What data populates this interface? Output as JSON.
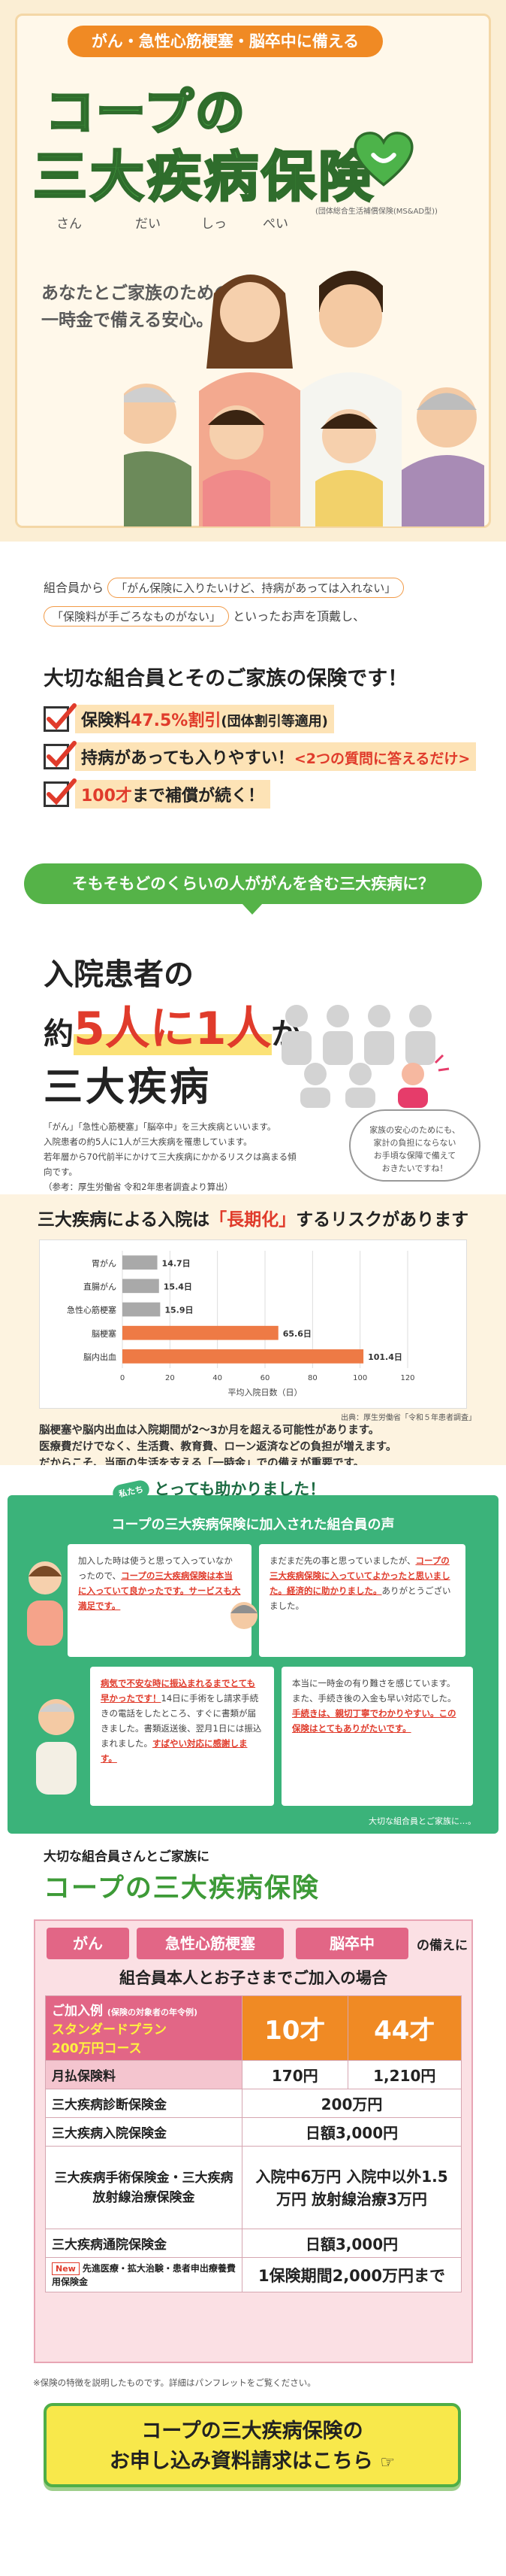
{
  "hero": {
    "top_pill": "がん・急性心筋梗塞・脳卒中に備える",
    "title_line1": "コープの",
    "title_line2": "三大疾病保険",
    "ruby": [
      "さん",
      "だい",
      "しっ",
      "ぺい"
    ],
    "note": "(団体総合生活補償保険(MS&AD型))",
    "lead_line1": "あなたとご家族のための、",
    "lead_line2": "一時金で備える安心。"
  },
  "benefits": {
    "line1_prefix": "組合員から",
    "bubble1": "「がん保険に入りたいけど、持病があっては入れない」",
    "bubble2": "「保険料が手ごろなものがない」",
    "line2_suffix": "といったお声を頂戴し、",
    "message": "大切な組合員とそのご家族の保険です！",
    "item1_a": "保険料",
    "item1_b": "47.5%割引",
    "item1_c": "(団体割引等適用)",
    "item2_a": "持病があっても入りやすい！",
    "item2_b": "<2つの質問に答えるだけ>",
    "item3_a": "100才",
    "item3_b": "まで補償が続く！"
  },
  "intro": {
    "banner": "そもそもどのくらいの人ががんを含む三大疾病に？"
  },
  "stat": {
    "line1": "入院患者の",
    "line2_a": "約",
    "line2_b": "5人に1人",
    "line2_c": "が",
    "line3": "三大疾病",
    "p1": "「がん」「急性心筋梗塞」「脳卒中」を三大疾病といいます。",
    "p2": "入院患者の約5人に1人が三大疾病を罹患しています。",
    "p3": "若年層から70代前半にかけて三大疾病にかかるリスクは高まる傾向です。",
    "p4": "（参考：厚生労働省 令和2年患者調査より算出）",
    "speech1": "家族の安心のためにも、",
    "speech2": "家計の負担にならない",
    "speech3": "お手頃な保障で備えて",
    "speech4": "おきたいですね！"
  },
  "chart": {
    "title_a": "三大疾病による入院は",
    "title_b": "「長期化」",
    "title_c": "するリスクがあります",
    "source": "出典：厚生労働省「令和５年患者調査」",
    "desc1": "脳梗塞や脳内出血は入院期間が2〜3か月を超える可能性があります。",
    "desc2": "医療費だけでなく、生活費、教育費、ローン返済などの負担が増えます。",
    "desc3": "だからこそ、当面の生活を支える「一時金」での備えが重要です。"
  },
  "chart_data": {
    "type": "bar",
    "orientation": "horizontal",
    "categories": [
      "胃がん",
      "直腸がん",
      "急性心筋梗塞",
      "脳梗塞",
      "脳内出血"
    ],
    "values": [
      14.7,
      15.4,
      15.9,
      65.6,
      101.4
    ],
    "value_labels": [
      "14.7日",
      "15.4日",
      "15.9日",
      "65.6日",
      "101.4日"
    ],
    "series_colors": [
      "#a9a9a9",
      "#a9a9a9",
      "#a9a9a9",
      "#ee7a45",
      "#ee7a45"
    ],
    "xticks": [
      "0",
      "20",
      "40",
      "60",
      "80",
      "100",
      "120"
    ],
    "xlim": [
      0,
      120
    ],
    "xlabel": "平均入院日数（日）",
    "grid": true
  },
  "voices": {
    "tag": "私たち",
    "heading": "とっても助かりました！",
    "title": "コープの三大疾病保険に加入された組合員の声",
    "v1_a": "加入した時は使うと思って入っていなかったので、",
    "v1_u": "コープの三大疾病保険は本当に入っていて良かったです。サービスも大満足です。",
    "v2_a": "まだまだ先の事と思っていましたが、",
    "v2_u": "コープの三大疾病保険に入っていてよかったと思いました。経済的に助かりました。",
    "v2_b": "ありがとうございました。",
    "v3_u": "病気で不安な時に振込まれるまでとても早かったです！",
    "v3_a": "14日に手術をし請求手続きの電話をしたところ、すぐに書類が届きました。書類返送後、翌月1日には振込まれました。",
    "v3_u2": "すばやい対応に感謝します。",
    "v4_a": "本当に一時金の有り難さを感じています。また、手続き後の入金も早い対応でした。",
    "v4_u": "手続きは、親切丁寧でわかりやすい。この保険はとてもありがたいです。",
    "foot": "大切な組合員とご家族に…。"
  },
  "product": {
    "sub": "大切な組合員さんとご家族に",
    "title": "コープの三大疾病保険",
    "tags": [
      "がん",
      "急性心筋梗塞",
      "脳卒中"
    ],
    "tag_tail": "の備えに",
    "case": "組合員本人とお子さまでご加入の場合",
    "example_label": "ご加入例",
    "example_note": "(保険の対象者の年令例)",
    "plan_name": "スタンダードプラン",
    "plan_course": "200万円コース",
    "age1": "10才",
    "age2": "44才",
    "rows": [
      {
        "label": "月払保険料",
        "v1": "170円",
        "v2": "1,210円"
      },
      {
        "label": "三大疾病診断保険金",
        "v": "200万円"
      },
      {
        "label": "三大疾病入院保険金",
        "v": "日額3,000円"
      },
      {
        "label": "三大疾病手術保険金・三大疾病放射線治療保険金",
        "v": "入院中6万円 入院中以外1.5万円 放射線治療3万円"
      },
      {
        "label": "三大疾病通院保険金",
        "v": "日額3,000円"
      },
      {
        "label": "先進医療・拡大治験・患者申出療養費用保険金",
        "v": "1保険期間2,000万円まで",
        "badge": "New"
      }
    ],
    "disclaimer": "※保険の特徴を説明したものです。詳細はパンフレットをご覧ください。"
  },
  "cta": {
    "line1": "コープの三大疾病保険の",
    "line2": "お申し込み資料請求はこちら"
  }
}
